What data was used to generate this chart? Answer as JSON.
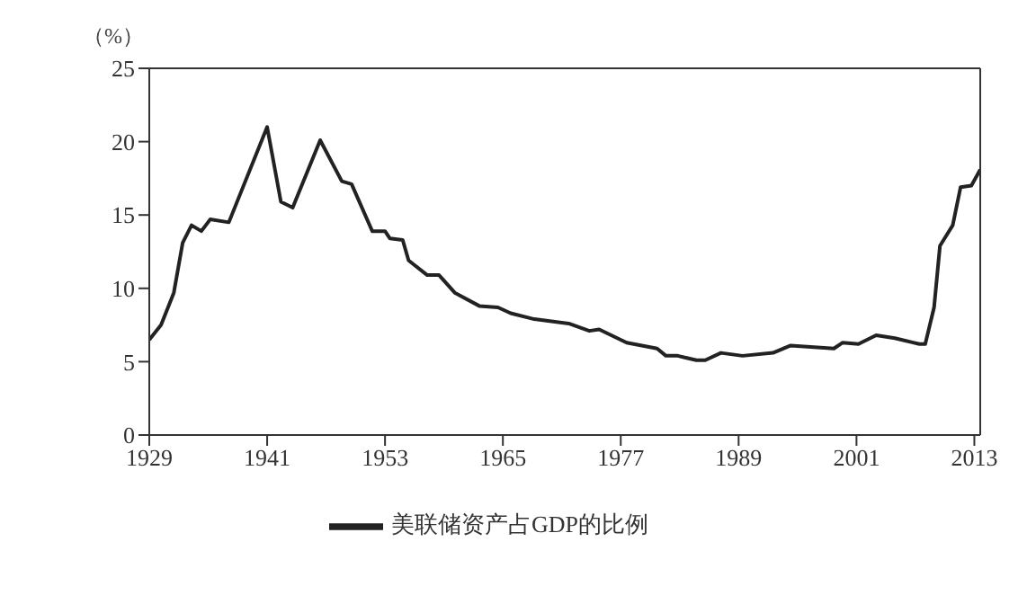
{
  "chart_data": {
    "type": "line",
    "ylabel": "（%）",
    "xlim": [
      1929,
      2013.6
    ],
    "xticks": [
      1929,
      1941,
      1953,
      1965,
      1977,
      1989,
      2001,
      2013
    ],
    "ylim": [
      0,
      25
    ],
    "yticks": [
      0,
      5,
      10,
      15,
      20,
      25
    ],
    "legend": "bottom",
    "marker": "none",
    "line_style": "solid",
    "series": [
      {
        "name": "美联储资产占GDP的比例",
        "color": "#222222",
        "x": [
          1929,
          1930.2,
          1931.5,
          1932.4,
          1933.3,
          1934.3,
          1935.2,
          1937.1,
          1941,
          1942.4,
          1943.6,
          1946.4,
          1948.6,
          1949.6,
          1951.7,
          1953,
          1953.5,
          1954.8,
          1955.4,
          1957.3,
          1958.5,
          1960.1,
          1962.6,
          1964.5,
          1965.8,
          1968.2,
          1971.7,
          1973.8,
          1974.8,
          1977.6,
          1980.7,
          1981.6,
          1982.8,
          1984.7,
          1985.6,
          1987.2,
          1989.4,
          1992.5,
          1994.3,
          1998.7,
          1999.6,
          2001.2,
          2003,
          2004.9,
          2007.4,
          2008,
          2008.9,
          2009.5,
          2010.8,
          2011.6,
          2012.7,
          2013.6
        ],
        "values": [
          6.5,
          7.5,
          9.7,
          13.1,
          14.3,
          13.9,
          14.7,
          14.5,
          21.0,
          15.9,
          15.5,
          20.1,
          17.3,
          17.1,
          13.9,
          13.9,
          13.4,
          13.3,
          11.9,
          10.9,
          10.9,
          9.7,
          8.8,
          8.7,
          8.3,
          7.9,
          7.6,
          7.1,
          7.2,
          6.3,
          5.9,
          5.4,
          5.4,
          5.1,
          5.1,
          5.6,
          5.4,
          5.6,
          6.1,
          5.9,
          6.3,
          6.2,
          6.8,
          6.6,
          6.2,
          6.2,
          8.7,
          12.9,
          14.3,
          16.9,
          17.0,
          18.1
        ]
      }
    ]
  }
}
